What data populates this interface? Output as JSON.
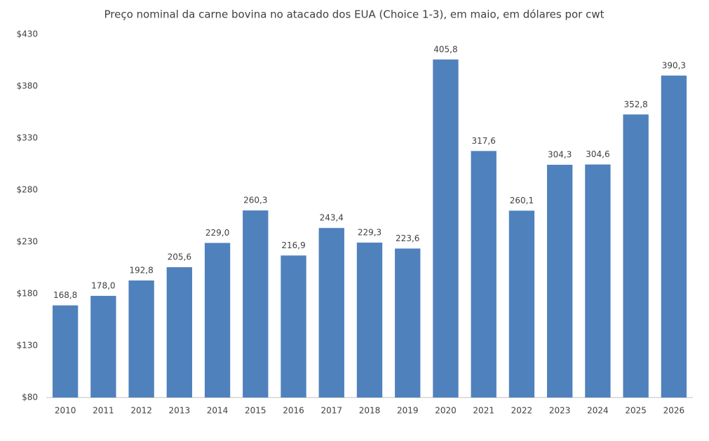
{
  "chart_data": {
    "type": "bar",
    "title": "Preço nominal da carne bovina no atacado dos EUA (Choice 1-3), em maio, em dólares por cwt",
    "categories": [
      "2010",
      "2011",
      "2012",
      "2013",
      "2014",
      "2015",
      "2016",
      "2017",
      "2018",
      "2019",
      "2020",
      "2021",
      "2022",
      "2023",
      "2024",
      "2025",
      "2026"
    ],
    "values": [
      168.8,
      178.0,
      192.8,
      205.6,
      229.0,
      260.3,
      216.9,
      243.4,
      229.3,
      223.6,
      405.8,
      317.6,
      260.1,
      304.3,
      304.6,
      352.8,
      390.3
    ],
    "value_labels": [
      "168,8",
      "178,0",
      "192,8",
      "205,6",
      "229,0",
      "260,3",
      "216,9",
      "243,4",
      "229,3",
      "223,6",
      "405,8",
      "317,6",
      "260,1",
      "304,3",
      "304,6",
      "352,8",
      "390,3"
    ],
    "color": "#4f81bd",
    "ylim": [
      80,
      430
    ],
    "yticks": [
      {
        "value": 80,
        "label": "$80"
      },
      {
        "value": 130,
        "label": "$130"
      },
      {
        "value": 180,
        "label": "$180"
      },
      {
        "value": 230,
        "label": "$230"
      },
      {
        "value": 280,
        "label": "$280"
      },
      {
        "value": 330,
        "label": "$330"
      },
      {
        "value": 380,
        "label": "$380"
      },
      {
        "value": 430,
        "label": "$430"
      }
    ],
    "grid": false
  }
}
